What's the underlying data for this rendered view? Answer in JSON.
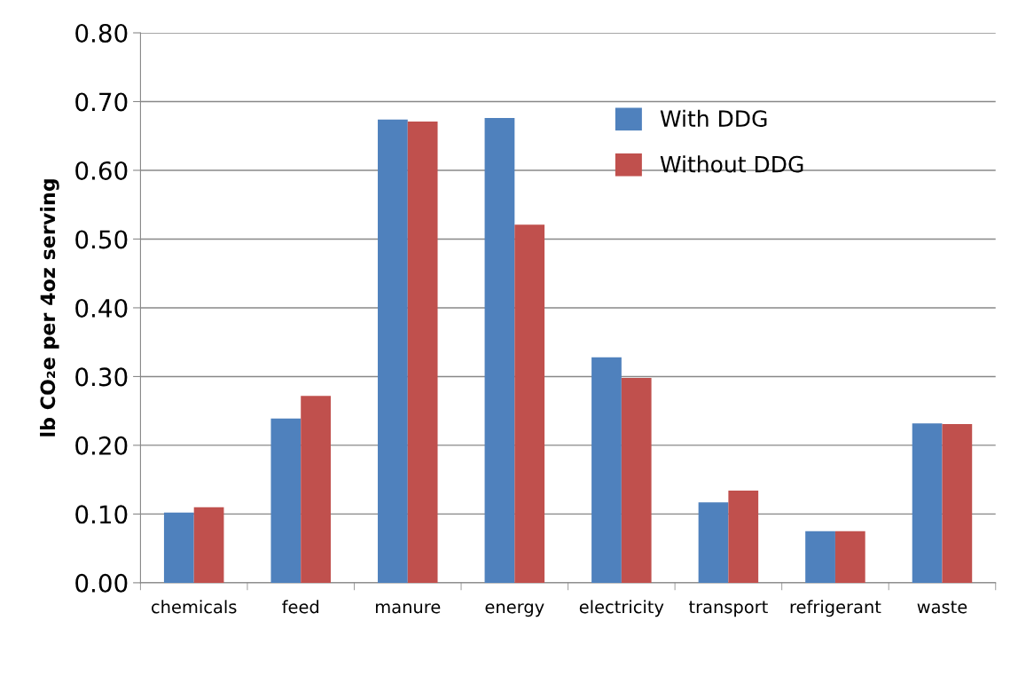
{
  "chart_data": {
    "type": "bar",
    "ylabel": "lb CO₂e per 4oz serving",
    "categories": [
      "chemicals",
      "feed",
      "manure",
      "energy",
      "electricity",
      "transport",
      "refrigerant",
      "waste"
    ],
    "series": [
      {
        "name": "With DDG",
        "color": "#4f81bd",
        "values": [
          0.102,
          0.239,
          0.674,
          0.676,
          0.328,
          0.117,
          0.075,
          0.232
        ]
      },
      {
        "name": "Without DDG",
        "color": "#c0504d",
        "values": [
          0.11,
          0.272,
          0.671,
          0.521,
          0.298,
          0.134,
          0.075,
          0.231
        ]
      }
    ],
    "ylim": [
      0,
      0.8
    ],
    "yticks": [
      {
        "value": 0,
        "label": "0.00"
      },
      {
        "value": 0.1,
        "label": "0.10"
      },
      {
        "value": 0.2,
        "label": "0.20"
      },
      {
        "value": 0.3,
        "label": "0.30"
      },
      {
        "value": 0.4,
        "label": "0.40"
      },
      {
        "value": 0.5,
        "label": "0.50"
      },
      {
        "value": 0.6,
        "label": "0.60"
      },
      {
        "value": 0.7,
        "label": "0.70"
      },
      {
        "value": 0.8,
        "label": "0.80"
      }
    ],
    "grid": "y",
    "legend": "top right"
  }
}
